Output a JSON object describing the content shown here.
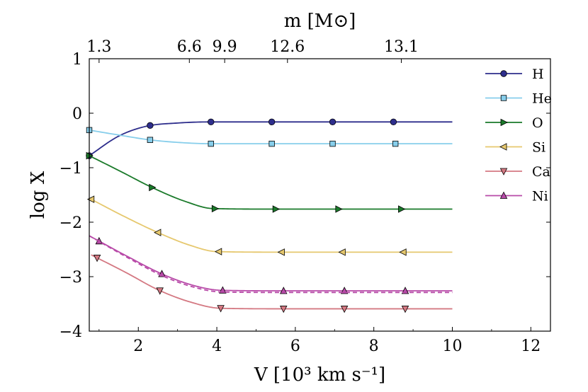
{
  "chart_data": {
    "type": "line",
    "xlabel": "V [10³ km s⁻¹]",
    "ylabel": "log X",
    "top_axis_label": "m [M⊙]",
    "xlim": [
      0.75,
      12.5
    ],
    "ylim": [
      -4,
      1
    ],
    "x_ticks": [
      2,
      4,
      6,
      8,
      10,
      12
    ],
    "x_tick_labels": [
      "2",
      "4",
      "6",
      "8",
      "10",
      "12"
    ],
    "y_ticks": [
      -4,
      -3,
      -2,
      -1,
      0,
      1
    ],
    "y_tick_labels": [
      "−4",
      "−3",
      "−2",
      "−1",
      "0",
      "1"
    ],
    "top_ticks": [
      {
        "v": 1.0,
        "label": "1.3"
      },
      {
        "v": 3.3,
        "label": "6.6"
      },
      {
        "v": 4.2,
        "label": "9.9"
      },
      {
        "v": 5.8,
        "label": "12.6"
      },
      {
        "v": 8.7,
        "label": "13.1"
      }
    ],
    "legend_position": "top-right",
    "series": [
      {
        "name": "H",
        "color": "#2e2e8c",
        "marker": "circle",
        "x": [
          0.75,
          1.5,
          2.2,
          3.0,
          3.8,
          5.4,
          7.0,
          8.5,
          10.0
        ],
        "y": [
          -0.78,
          -0.42,
          -0.24,
          -0.18,
          -0.16,
          -0.16,
          -0.16,
          -0.16,
          -0.16
        ],
        "marker_x": [
          0.75,
          2.3,
          3.85,
          5.4,
          6.95,
          8.5
        ]
      },
      {
        "name": "He",
        "color": "#87ceeb",
        "marker": "square",
        "x": [
          0.75,
          1.5,
          2.3,
          3.1,
          3.9,
          5.4,
          7.0,
          8.6,
          10.0
        ],
        "y": [
          -0.31,
          -0.4,
          -0.49,
          -0.54,
          -0.56,
          -0.56,
          -0.56,
          -0.56,
          -0.56
        ],
        "marker_x": [
          0.75,
          2.3,
          3.85,
          5.4,
          6.95,
          8.55
        ]
      },
      {
        "name": "O",
        "color": "#1a7a2a",
        "marker": "triangle-right",
        "x": [
          0.75,
          1.5,
          2.4,
          3.2,
          3.9,
          5.5,
          7.1,
          8.7,
          10.0
        ],
        "y": [
          -0.78,
          -1.05,
          -1.38,
          -1.62,
          -1.75,
          -1.76,
          -1.76,
          -1.76,
          -1.76
        ],
        "marker_x": [
          0.75,
          2.35,
          3.95,
          5.5,
          7.1,
          8.7
        ]
      },
      {
        "name": "Si",
        "color": "#e6c86e",
        "marker": "triangle-left",
        "x": [
          0.8,
          1.6,
          2.5,
          3.3,
          4.0,
          5.6,
          7.2,
          8.8,
          10.0
        ],
        "y": [
          -1.58,
          -1.88,
          -2.19,
          -2.42,
          -2.54,
          -2.55,
          -2.55,
          -2.55,
          -2.55
        ],
        "marker_x": [
          0.8,
          2.5,
          4.05,
          5.65,
          7.2,
          8.75
        ]
      },
      {
        "name": "Ca",
        "color": "#d47882",
        "marker": "triangle-down",
        "x": [
          0.8,
          1.7,
          2.5,
          3.3,
          4.1,
          5.7,
          7.3,
          8.9,
          10.0
        ],
        "y": [
          -2.6,
          -2.93,
          -3.24,
          -3.46,
          -3.58,
          -3.59,
          -3.59,
          -3.59,
          -3.59
        ],
        "marker_x": [
          0.95,
          2.55,
          4.1,
          5.7,
          7.25,
          8.8
        ]
      },
      {
        "name": "Ni",
        "color": "#b84aa8",
        "marker": "triangle-up",
        "x": [
          0.75,
          1.7,
          2.6,
          3.4,
          4.1,
          5.7,
          7.3,
          8.9,
          10.0
        ],
        "y": [
          -2.25,
          -2.62,
          -2.95,
          -3.16,
          -3.25,
          -3.26,
          -3.26,
          -3.26,
          -3.26
        ],
        "marker_x": [
          1.0,
          2.6,
          4.15,
          5.7,
          7.25,
          8.8
        ]
      },
      {
        "name": "",
        "color": "#b84aa8",
        "marker": "none",
        "dashed": true,
        "x": [
          0.75,
          1.7,
          2.6,
          3.4,
          4.1,
          5.7,
          7.3,
          8.9,
          10.0
        ],
        "y": [
          -2.25,
          -2.64,
          -2.98,
          -3.19,
          -3.28,
          -3.29,
          -3.29,
          -3.29,
          -3.29
        ],
        "marker_x": []
      }
    ]
  }
}
